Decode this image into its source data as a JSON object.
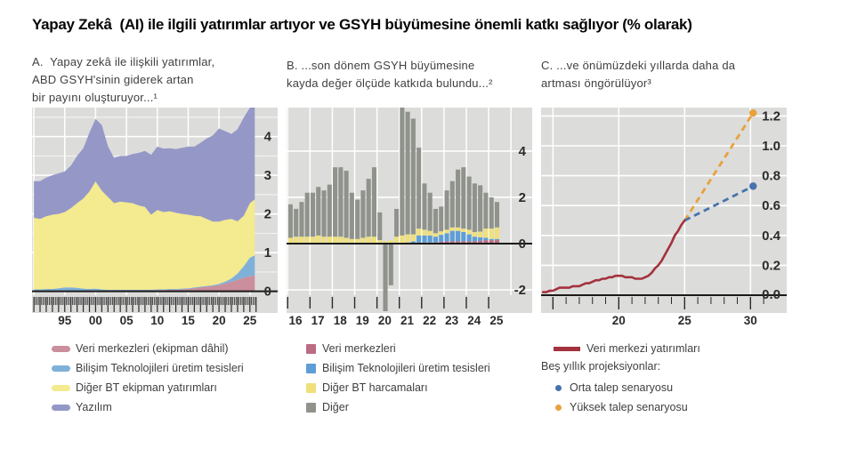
{
  "title": "Yapay Zekâ  (AI) ile ilgili yatırımlar artıyor ve GSYH büyümesine önemli katkı sağlıyor (% olarak)",
  "panels": {
    "a": {
      "caption_lines": [
        "A.  Yapay zekâ ile ilişkili yatırımlar,",
        "ABD GSYH'sinin giderek artan",
        "bir payını oluşturuyor...¹"
      ]
    },
    "b": {
      "caption_lines": [
        "B. ...son dönem GSYH büyümesine",
        "kayda değer ölçüde katkıda bulundu...²"
      ]
    },
    "c": {
      "caption_lines": [
        "C. ...ve önümüzdeki yıllarda daha da",
        "artması öngörülüyor³"
      ],
      "legend_note": "Beş yıllık projeksiyonlar:"
    }
  },
  "colors": {
    "plot_bg": "#dcdcdb",
    "grid": "#ffffff",
    "axis": "#1a1a1a",
    "tick": "#2a2a2a",
    "label": "#2b2b2b"
  },
  "chart_data": [
    {
      "id": "a",
      "type": "area",
      "stacked": true,
      "title": "Yapay zekâ ile ilişkili yatırımlar, ABD GSYH'sinin giderek artan bir payını oluşturuyor (% GSYH)",
      "x": [
        1990,
        1991,
        1992,
        1993,
        1994,
        1995,
        1996,
        1997,
        1998,
        1999,
        2000,
        2001,
        2002,
        2003,
        2004,
        2005,
        2006,
        2007,
        2008,
        2009,
        2010,
        2011,
        2012,
        2013,
        2014,
        2015,
        2016,
        2017,
        2018,
        2019,
        2020,
        2021,
        2022,
        2023,
        2024,
        2025,
        2025.8
      ],
      "series": [
        {
          "name": "Veri merkezleri (ekipman dâhil)",
          "color": "#cb8e9d",
          "values": [
            0.02,
            0.02,
            0.02,
            0.02,
            0.02,
            0.02,
            0.02,
            0.02,
            0.02,
            0.02,
            0.02,
            0.02,
            0.02,
            0.02,
            0.02,
            0.02,
            0.02,
            0.02,
            0.02,
            0.02,
            0.03,
            0.03,
            0.04,
            0.04,
            0.05,
            0.06,
            0.08,
            0.1,
            0.12,
            0.14,
            0.16,
            0.2,
            0.25,
            0.3,
            0.35,
            0.39,
            0.41
          ]
        },
        {
          "name": "Bilişim Teknolojileri üretim tesisleri",
          "color": "#7fb1d8",
          "values": [
            0.03,
            0.03,
            0.04,
            0.04,
            0.06,
            0.08,
            0.08,
            0.07,
            0.05,
            0.04,
            0.05,
            0.03,
            0.02,
            0.02,
            0.02,
            0.02,
            0.02,
            0.02,
            0.02,
            0.02,
            0.02,
            0.02,
            0.02,
            0.02,
            0.02,
            0.02,
            0.02,
            0.02,
            0.02,
            0.02,
            0.03,
            0.05,
            0.08,
            0.16,
            0.3,
            0.48,
            0.52
          ]
        },
        {
          "name": "Diğer BT ekipman yatırımları",
          "color": "#f4ea8f",
          "values": [
            1.85,
            1.82,
            1.88,
            1.92,
            1.92,
            1.95,
            2.05,
            2.19,
            2.33,
            2.52,
            2.77,
            2.55,
            2.4,
            2.24,
            2.28,
            2.26,
            2.24,
            2.18,
            2.14,
            1.94,
            2.05,
            2.0,
            2.01,
            1.97,
            1.93,
            1.9,
            1.85,
            1.82,
            1.73,
            1.64,
            1.61,
            1.6,
            1.54,
            1.35,
            1.3,
            1.41,
            1.45
          ]
        },
        {
          "name": "Yazılım",
          "color": "#9598c7",
          "values": [
            0.95,
            0.98,
            1.0,
            1.02,
            1.05,
            1.05,
            1.1,
            1.22,
            1.3,
            1.52,
            1.62,
            1.7,
            1.31,
            1.17,
            1.18,
            1.2,
            1.27,
            1.36,
            1.45,
            1.55,
            1.64,
            1.64,
            1.63,
            1.65,
            1.71,
            1.76,
            1.79,
            1.9,
            2.08,
            2.23,
            2.41,
            2.29,
            2.2,
            2.38,
            2.54,
            2.47,
            2.5
          ]
        }
      ],
      "axes": {
        "xlim": [
          1989.7,
          2029.5
        ],
        "ylim": [
          -0.1,
          4.75
        ],
        "x_gridlines": [
          1990,
          1995,
          2000,
          2005,
          2010,
          2015,
          2020,
          2025
        ],
        "y_gridlines": [
          1,
          2,
          3,
          4
        ],
        "y_minor_gridlines": [
          0.5,
          1.5,
          2.5,
          3.5,
          4.5
        ],
        "zero_line": 0,
        "y_labels": [
          {
            "v": 0,
            "t": "0"
          },
          {
            "v": 1,
            "t": "1"
          },
          {
            "v": 2,
            "t": "2"
          },
          {
            "v": 3,
            "t": "3"
          },
          {
            "v": 4,
            "t": "4"
          }
        ],
        "x_labels": [
          {
            "v": 1995,
            "t": "95"
          },
          {
            "v": 2000,
            "t": "00"
          },
          {
            "v": 2005,
            "t": "05"
          },
          {
            "v": 2010,
            "t": "10"
          },
          {
            "v": 2015,
            "t": "15"
          },
          {
            "v": 2020,
            "t": "20"
          },
          {
            "v": 2025,
            "t": "25"
          }
        ],
        "ticks": {
          "minor_step": 0.25,
          "major_step": 1,
          "range": [
            1990,
            2026
          ]
        }
      }
    },
    {
      "id": "b",
      "type": "bar",
      "stacked": true,
      "title": "Son dönem GSYH büyümesine kayda değer ölçüde katkıda bulundu (puan)",
      "x_start": 2016,
      "x_step": 0.25,
      "series": [
        {
          "name": "Veri merkezleri",
          "color": "#bb6d83",
          "values": [
            0,
            0,
            0,
            0,
            0,
            0,
            0,
            0,
            0,
            0,
            0,
            0,
            0,
            0,
            0,
            0,
            0,
            0,
            0,
            0,
            0,
            0,
            0,
            0.05,
            0.05,
            0.05,
            0.05,
            0.08,
            0.1,
            0.1,
            0.1,
            0.1,
            0.1,
            0.1,
            0.12,
            0.15,
            0.15,
            0.15
          ]
        },
        {
          "name": "Bilişim Teknolojileri üretim tesisleri",
          "color": "#5d9ed6",
          "values": [
            0,
            0,
            0,
            0,
            0,
            0,
            0,
            0,
            0,
            0,
            0,
            0,
            0,
            0,
            0,
            0,
            0,
            0,
            0,
            0,
            0,
            0.05,
            0.1,
            0.3,
            0.3,
            0.3,
            0.25,
            0.3,
            0.35,
            0.45,
            0.45,
            0.4,
            0.3,
            0.2,
            0.15,
            0.1,
            0.05,
            0.05
          ]
        },
        {
          "name": "Diğer BT harcamaları",
          "color": "#efe07c",
          "values": [
            0.25,
            0.3,
            0.3,
            0.3,
            0.3,
            0.35,
            0.3,
            0.3,
            0.3,
            0.3,
            0.25,
            0.2,
            0.2,
            0.25,
            0.3,
            0.3,
            0.15,
            0.1,
            0.15,
            0.3,
            0.35,
            0.35,
            0.3,
            0.3,
            0.25,
            0.2,
            0.15,
            0.15,
            0.15,
            0.15,
            0.15,
            0.15,
            0.2,
            0.2,
            0.25,
            0.4,
            0.45,
            0.5
          ]
        },
        {
          "name": "Diğer",
          "color": "#8f938c",
          "values": [
            1.45,
            1.2,
            1.5,
            1.9,
            1.9,
            2.1,
            2.0,
            2.25,
            3.0,
            3.0,
            2.9,
            2.0,
            1.7,
            2.05,
            2.5,
            3.0,
            1.2,
            -5.8,
            -1.8,
            1.2,
            5.95,
            5.3,
            5.0,
            3.5,
            2.0,
            1.65,
            1.05,
            1.07,
            1.7,
            2.0,
            2.5,
            2.65,
            2.3,
            2.1,
            2.0,
            1.55,
            1.35,
            1.1
          ]
        }
      ],
      "axes": {
        "xlim": [
          2015.95,
          2026.95
        ],
        "ylim": [
          -2.23,
          5.88
        ],
        "x_gridlines": [
          2016,
          2017,
          2018,
          2019,
          2020,
          2021,
          2022,
          2023,
          2024,
          2025,
          2026
        ],
        "y_gridlines": [
          -2,
          2,
          4
        ],
        "y_minor_gridlines": [],
        "zero_line": 0,
        "y_labels": [
          {
            "v": -2,
            "t": "-2"
          },
          {
            "v": 0,
            "t": "0"
          },
          {
            "v": 2,
            "t": "2"
          },
          {
            "v": 4,
            "t": "4"
          }
        ],
        "x_labels": [
          {
            "v": 2016.35,
            "t": "16"
          },
          {
            "v": 2017.35,
            "t": "17"
          },
          {
            "v": 2018.35,
            "t": "18"
          },
          {
            "v": 2019.35,
            "t": "19"
          },
          {
            "v": 2020.35,
            "t": "20"
          },
          {
            "v": 2021.35,
            "t": "21"
          },
          {
            "v": 2022.35,
            "t": "22"
          },
          {
            "v": 2023.35,
            "t": "23"
          },
          {
            "v": 2024.35,
            "t": "24"
          },
          {
            "v": 2025.35,
            "t": "25"
          }
        ],
        "ticks": {
          "minor_step": 1,
          "major_step": 1,
          "range": [
            2016,
            2025
          ]
        }
      }
    },
    {
      "id": "c",
      "type": "line",
      "title": "Veri merkezi yatırımlarının önümüzdeki yıllarda daha da artması öngörülüyor (% GSYH)",
      "series": [
        {
          "name": "Veri merkezi yatırımları",
          "color": "#a3323d",
          "style": "solid",
          "x_start": 2014.25,
          "x_step": 0.25,
          "values": [
            0.02,
            0.02,
            0.03,
            0.03,
            0.04,
            0.05,
            0.05,
            0.05,
            0.05,
            0.06,
            0.06,
            0.06,
            0.07,
            0.08,
            0.08,
            0.09,
            0.1,
            0.1,
            0.11,
            0.11,
            0.12,
            0.12,
            0.13,
            0.13,
            0.13,
            0.12,
            0.12,
            0.12,
            0.11,
            0.11,
            0.11,
            0.12,
            0.13,
            0.15,
            0.18,
            0.2,
            0.23,
            0.27,
            0.31,
            0.35,
            0.4,
            0.43,
            0.47,
            0.5
          ]
        },
        {
          "name": "Orta talep senaryosu",
          "color": "#4673ad",
          "style": "dashed",
          "end_dot": true,
          "x": [
            2025.0,
            2030.2
          ],
          "values": [
            0.5,
            0.73
          ]
        },
        {
          "name": "Yüksek talep senaryosu",
          "color": "#e8a13c",
          "style": "dashed",
          "end_dot": true,
          "x": [
            2025.0,
            2030.2
          ],
          "values": [
            0.5,
            1.22
          ]
        }
      ],
      "axes": {
        "xlim": [
          2014.1,
          2032.75
        ],
        "ylim": [
          0,
          1.256
        ],
        "x_gridlines": [
          2015,
          2020,
          2025,
          2030
        ],
        "y_gridlines": [
          0.2,
          0.4,
          0.6,
          0.8,
          1.0,
          1.2
        ],
        "y_minor_gridlines": [],
        "zero_line": 0,
        "y_labels": [
          {
            "v": 0,
            "t": "0.0"
          },
          {
            "v": 0.2,
            "t": "0.2"
          },
          {
            "v": 0.4,
            "t": "0.4"
          },
          {
            "v": 0.6,
            "t": "0.6"
          },
          {
            "v": 0.8,
            "t": "0.8"
          },
          {
            "v": 1.0,
            "t": "1.0"
          },
          {
            "v": 1.2,
            "t": "1.2"
          }
        ],
        "x_labels": [
          {
            "v": 2020,
            "t": "20"
          },
          {
            "v": 2025,
            "t": "25"
          },
          {
            "v": 2030,
            "t": "30"
          }
        ],
        "ticks": {
          "minor_step": 1,
          "major_step": 5,
          "range": [
            2015,
            2031
          ]
        }
      }
    }
  ]
}
